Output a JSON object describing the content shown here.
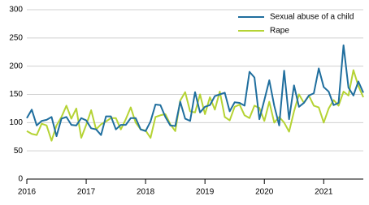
{
  "chart_data": {
    "type": "line",
    "categories": [
      "2016",
      null,
      null,
      null,
      null,
      null,
      null,
      null,
      null,
      null,
      null,
      null,
      "2017",
      null,
      null,
      null,
      null,
      null,
      null,
      null,
      null,
      null,
      null,
      null,
      "2018",
      null,
      null,
      null,
      null,
      null,
      null,
      null,
      null,
      null,
      null,
      null,
      "2019",
      null,
      null,
      null,
      null,
      null,
      null,
      null,
      null,
      null,
      null,
      null,
      "2020",
      null,
      null,
      null,
      null,
      null,
      null,
      null,
      null,
      null,
      null,
      null,
      "2021",
      null,
      null,
      null,
      null,
      null,
      null,
      null,
      null
    ],
    "series": [
      {
        "name": "Sexual abuse of a child",
        "color": "#1f6e9e",
        "values": [
          108,
          123,
          95,
          103,
          105,
          110,
          76,
          107,
          110,
          96,
          95,
          108,
          104,
          90,
          88,
          78,
          111,
          111,
          88,
          96,
          96,
          108,
          108,
          88,
          85,
          102,
          132,
          131,
          110,
          95,
          94,
          137,
          107,
          103,
          154,
          118,
          128,
          131,
          147,
          150,
          153,
          120,
          136,
          135,
          130,
          190,
          180,
          106,
          140,
          175,
          130,
          95,
          192,
          106,
          166,
          128,
          135,
          148,
          152,
          196,
          163,
          155,
          131,
          135,
          237,
          162,
          148,
          173,
          153
        ]
      },
      {
        "name": "Rape",
        "color": "#b5d334",
        "values": [
          85,
          80,
          78,
          98,
          95,
          68,
          95,
          110,
          130,
          107,
          125,
          73,
          96,
          122,
          88,
          97,
          102,
          108,
          108,
          88,
          106,
          127,
          100,
          88,
          86,
          73,
          110,
          113,
          115,
          97,
          85,
          139,
          154,
          120,
          118,
          150,
          115,
          145,
          123,
          155,
          110,
          104,
          128,
          132,
          113,
          108,
          130,
          126,
          103,
          137,
          100,
          110,
          100,
          84,
          120,
          150,
          135,
          148,
          130,
          127,
          100,
          125,
          140,
          130,
          155,
          148,
          193,
          165,
          145
        ]
      }
    ],
    "ylim": [
      0,
      300
    ],
    "yticks": [
      0,
      50,
      100,
      150,
      200,
      250,
      300
    ],
    "grid": true,
    "legend": "top-right"
  }
}
